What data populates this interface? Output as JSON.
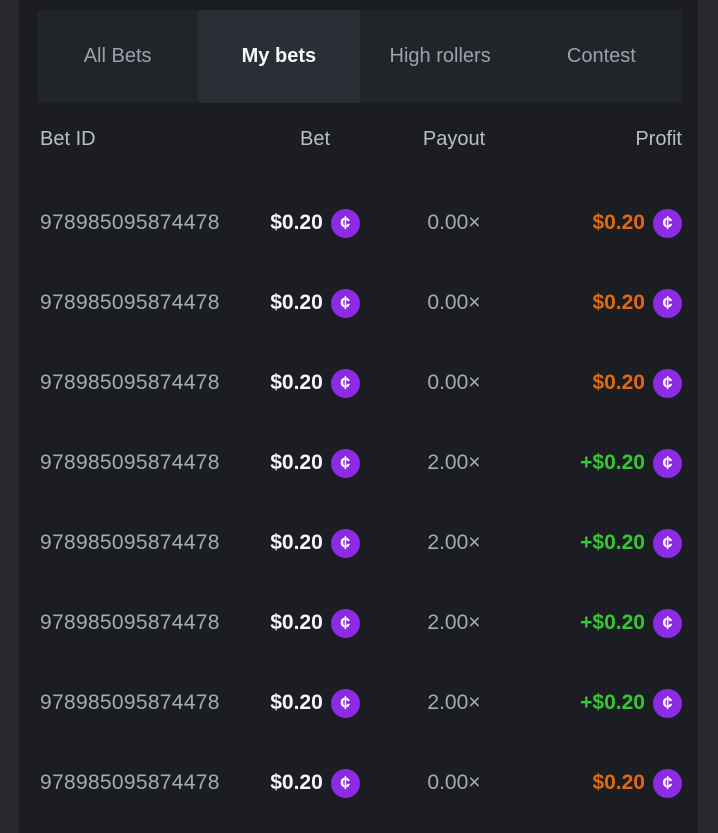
{
  "tabs": {
    "items": [
      {
        "label": "All Bets",
        "active": false
      },
      {
        "label": "My bets",
        "active": true
      },
      {
        "label": "High rollers",
        "active": false
      },
      {
        "label": "Contest",
        "active": false
      }
    ]
  },
  "table": {
    "columns": [
      "Bet ID",
      "Bet",
      "Payout",
      "Profit"
    ],
    "rows": [
      {
        "bet_id": "978985095874478",
        "bet": "$0.20",
        "payout": "0.00×",
        "profit": "$0.20",
        "result": "loss"
      },
      {
        "bet_id": "978985095874478",
        "bet": "$0.20",
        "payout": "0.00×",
        "profit": "$0.20",
        "result": "loss"
      },
      {
        "bet_id": "978985095874478",
        "bet": "$0.20",
        "payout": "0.00×",
        "profit": "$0.20",
        "result": "loss"
      },
      {
        "bet_id": "978985095874478",
        "bet": "$0.20",
        "payout": "2.00×",
        "profit": "+$0.20",
        "result": "win"
      },
      {
        "bet_id": "978985095874478",
        "bet": "$0.20",
        "payout": "2.00×",
        "profit": "+$0.20",
        "result": "win"
      },
      {
        "bet_id": "978985095874478",
        "bet": "$0.20",
        "payout": "2.00×",
        "profit": "+$0.20",
        "result": "win"
      },
      {
        "bet_id": "978985095874478",
        "bet": "$0.20",
        "payout": "2.00×",
        "profit": "+$0.20",
        "result": "win"
      },
      {
        "bet_id": "978985095874478",
        "bet": "$0.20",
        "payout": "0.00×",
        "profit": "$0.20",
        "result": "loss"
      }
    ]
  },
  "icons": {
    "coin_glyph": "¢"
  },
  "colors": {
    "profit_win": "#34c734",
    "profit_loss": "#e0690e",
    "coin": "#8d2ae3"
  }
}
